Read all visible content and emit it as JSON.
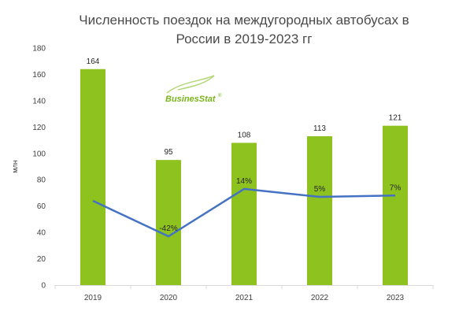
{
  "chart_data": {
    "type": "bar",
    "title": "Численность поездок на междугородных автобусах в России в 2019-2023 гг",
    "ylabel": "млн",
    "xlabel": "",
    "categories": [
      "2019",
      "2020",
      "2021",
      "2022",
      "2023"
    ],
    "values": [
      164,
      95,
      108,
      113,
      121
    ],
    "value_labels": [
      "164",
      "95",
      "108",
      "113",
      "121"
    ],
    "ylim": [
      0,
      180
    ],
    "yticks": [
      "0",
      "20",
      "40",
      "60",
      "80",
      "100",
      "120",
      "140",
      "160",
      "180"
    ],
    "grid": false,
    "bar_color": "#8dc21f",
    "line_series": {
      "type": "line",
      "color": "#4472c4",
      "values": [
        64,
        37,
        73,
        67,
        68
      ],
      "labels": [
        "",
        "-42%",
        "14%",
        "5%",
        "7%"
      ]
    },
    "watermark": "BusinesStat"
  }
}
